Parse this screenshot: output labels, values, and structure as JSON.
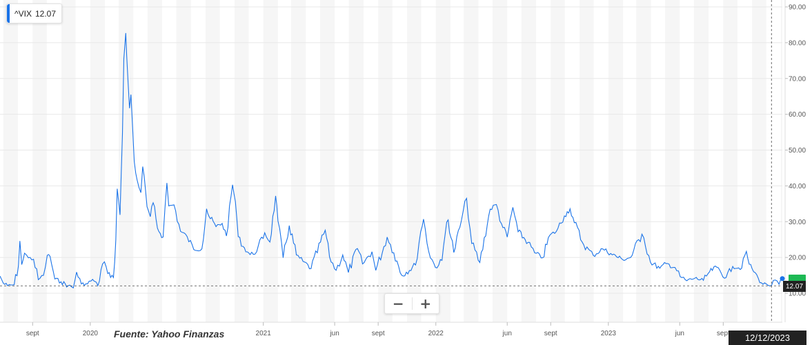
{
  "legend": {
    "symbol": "^VIX",
    "value": "12.07"
  },
  "source": "Fuente: Yahoo Finanzas",
  "zoom": {
    "minus": "−",
    "plus": "+"
  },
  "crosshair": {
    "date": "12/12/2023",
    "price": "12.07"
  },
  "colors": {
    "line": "#1a73e8",
    "band": "#f6f6f6",
    "grid": "#e8e8e8",
    "last_badge": "#1db954"
  },
  "chart_data": {
    "type": "line",
    "title": "",
    "xlabel": "",
    "ylabel": "",
    "ylim": [
      0,
      93
    ],
    "yticks": [
      "10.00",
      "20.00",
      "30.00",
      "40.00",
      "50.00",
      "60.00",
      "70.00",
      "80.00",
      "90.00"
    ],
    "xlim": [
      "2019-06-24",
      "2024-01-04"
    ],
    "xticks": [
      {
        "date": "2019-09-01",
        "label": "sept"
      },
      {
        "date": "2020-01-01",
        "label": "2020"
      },
      {
        "date": "2021-01-01",
        "label": "2021"
      },
      {
        "date": "2021-06-01",
        "label": "jun"
      },
      {
        "date": "2021-09-01",
        "label": "sept"
      },
      {
        "date": "2022-01-01",
        "label": "2022"
      },
      {
        "date": "2022-06-01",
        "label": "jun"
      },
      {
        "date": "2022-09-01",
        "label": "sept"
      },
      {
        "date": "2023-01-01",
        "label": "2023"
      },
      {
        "date": "2023-06-01",
        "label": "jun"
      },
      {
        "date": "2023-09-01",
        "label": "sept"
      }
    ],
    "series": [
      {
        "values": [
          [
            "2019-06-24",
            14.8
          ],
          [
            "2019-07-01",
            12.8
          ],
          [
            "2019-07-10",
            12.1
          ],
          [
            "2019-07-24",
            12.4
          ],
          [
            "2019-08-02",
            17.6
          ],
          [
            "2019-08-05",
            24.6
          ],
          [
            "2019-08-09",
            18.0
          ],
          [
            "2019-08-15",
            21.2
          ],
          [
            "2019-08-23",
            19.9
          ],
          [
            "2019-09-03",
            19.5
          ],
          [
            "2019-09-13",
            13.8
          ],
          [
            "2019-09-24",
            15.0
          ],
          [
            "2019-10-02",
            20.6
          ],
          [
            "2019-10-08",
            20.3
          ],
          [
            "2019-10-18",
            14.0
          ],
          [
            "2019-10-31",
            13.2
          ],
          [
            "2019-11-15",
            12.1
          ],
          [
            "2019-11-26",
            11.5
          ],
          [
            "2019-12-03",
            15.9
          ],
          [
            "2019-12-13",
            12.6
          ],
          [
            "2019-12-26",
            12.6
          ],
          [
            "2020-01-06",
            13.9
          ],
          [
            "2020-01-08",
            13.5
          ],
          [
            "2020-01-17",
            12.1
          ],
          [
            "2020-01-27",
            18.2
          ],
          [
            "2020-01-31",
            18.8
          ],
          [
            "2020-02-07",
            15.5
          ],
          [
            "2020-02-19",
            14.4
          ],
          [
            "2020-02-24",
            25.0
          ],
          [
            "2020-02-27",
            39.2
          ],
          [
            "2020-03-04",
            31.9
          ],
          [
            "2020-03-09",
            54.5
          ],
          [
            "2020-03-12",
            75.5
          ],
          [
            "2020-03-16",
            82.7
          ],
          [
            "2020-03-18",
            76.5
          ],
          [
            "2020-03-24",
            61.7
          ],
          [
            "2020-03-27",
            65.5
          ],
          [
            "2020-04-03",
            46.8
          ],
          [
            "2020-04-09",
            41.7
          ],
          [
            "2020-04-17",
            38.1
          ],
          [
            "2020-04-21",
            45.4
          ],
          [
            "2020-04-30",
            34.2
          ],
          [
            "2020-05-07",
            31.4
          ],
          [
            "2020-05-13",
            35.3
          ],
          [
            "2020-05-22",
            28.2
          ],
          [
            "2020-06-03",
            25.7
          ],
          [
            "2020-06-11",
            40.8
          ],
          [
            "2020-06-15",
            34.4
          ],
          [
            "2020-06-26",
            34.7
          ],
          [
            "2020-07-10",
            27.3
          ],
          [
            "2020-07-24",
            25.8
          ],
          [
            "2020-08-07",
            22.2
          ],
          [
            "2020-08-24",
            22.4
          ],
          [
            "2020-09-03",
            33.6
          ],
          [
            "2020-09-08",
            31.5
          ],
          [
            "2020-09-23",
            28.6
          ],
          [
            "2020-10-06",
            29.5
          ],
          [
            "2020-10-15",
            26.0
          ],
          [
            "2020-10-28",
            40.3
          ],
          [
            "2020-11-03",
            35.6
          ],
          [
            "2020-11-09",
            25.8
          ],
          [
            "2020-11-19",
            23.1
          ],
          [
            "2020-12-04",
            20.8
          ],
          [
            "2020-12-18",
            21.6
          ],
          [
            "2021-01-04",
            26.9
          ],
          [
            "2021-01-15",
            24.3
          ],
          [
            "2021-01-27",
            37.2
          ],
          [
            "2021-02-01",
            30.2
          ],
          [
            "2021-02-12",
            19.9
          ],
          [
            "2021-02-25",
            28.9
          ],
          [
            "2021-03-12",
            20.7
          ],
          [
            "2021-03-26",
            18.9
          ],
          [
            "2021-04-12",
            16.9
          ],
          [
            "2021-05-12",
            27.6
          ],
          [
            "2021-05-21",
            20.2
          ],
          [
            "2021-06-04",
            16.4
          ],
          [
            "2021-06-18",
            20.7
          ],
          [
            "2021-06-30",
            15.8
          ],
          [
            "2021-07-19",
            22.5
          ],
          [
            "2021-07-30",
            18.2
          ],
          [
            "2021-08-19",
            21.6
          ],
          [
            "2021-08-27",
            16.4
          ],
          [
            "2021-09-20",
            25.7
          ],
          [
            "2021-10-04",
            21.3
          ],
          [
            "2021-10-21",
            15.0
          ],
          [
            "2021-11-19",
            17.9
          ],
          [
            "2021-11-30",
            27.2
          ],
          [
            "2021-12-06",
            30.7
          ],
          [
            "2021-12-17",
            21.6
          ],
          [
            "2021-12-31",
            17.2
          ],
          [
            "2022-01-14",
            19.2
          ],
          [
            "2022-01-24",
            29.9
          ],
          [
            "2022-01-27",
            30.5
          ],
          [
            "2022-02-08",
            21.4
          ],
          [
            "2022-02-24",
            30.3
          ],
          [
            "2022-03-07",
            36.5
          ],
          [
            "2022-03-18",
            23.9
          ],
          [
            "2022-04-04",
            18.6
          ],
          [
            "2022-04-26",
            33.5
          ],
          [
            "2022-05-09",
            34.8
          ],
          [
            "2022-05-20",
            29.4
          ],
          [
            "2022-06-01",
            25.7
          ],
          [
            "2022-06-13",
            34.0
          ],
          [
            "2022-06-24",
            27.2
          ],
          [
            "2022-07-15",
            24.2
          ],
          [
            "2022-07-29",
            21.3
          ],
          [
            "2022-08-15",
            19.9
          ],
          [
            "2022-08-30",
            26.2
          ],
          [
            "2022-09-13",
            27.3
          ],
          [
            "2022-09-30",
            31.6
          ],
          [
            "2022-10-12",
            33.6
          ],
          [
            "2022-10-21",
            29.7
          ],
          [
            "2022-11-10",
            23.5
          ],
          [
            "2022-11-30",
            20.6
          ],
          [
            "2022-12-20",
            22.4
          ],
          [
            "2023-01-06",
            21.1
          ],
          [
            "2023-01-31",
            19.4
          ],
          [
            "2023-02-17",
            20.0
          ],
          [
            "2023-03-13",
            26.5
          ],
          [
            "2023-03-17",
            25.5
          ],
          [
            "2023-03-31",
            18.7
          ],
          [
            "2023-04-20",
            17.0
          ],
          [
            "2023-05-03",
            18.3
          ],
          [
            "2023-05-22",
            17.2
          ],
          [
            "2023-06-02",
            14.6
          ],
          [
            "2023-06-16",
            13.5
          ],
          [
            "2023-07-03",
            14.2
          ],
          [
            "2023-07-21",
            13.6
          ],
          [
            "2023-08-03",
            16.0
          ],
          [
            "2023-08-18",
            17.3
          ],
          [
            "2023-09-07",
            14.4
          ],
          [
            "2023-09-21",
            17.5
          ],
          [
            "2023-10-10",
            17.0
          ],
          [
            "2023-10-20",
            21.7
          ],
          [
            "2023-10-26",
            18.1
          ],
          [
            "2023-11-01",
            16.9
          ],
          [
            "2023-11-14",
            14.2
          ],
          [
            "2023-11-24",
            12.5
          ],
          [
            "2023-12-01",
            12.6
          ],
          [
            "2023-12-12",
            12.1
          ],
          [
            "2023-12-20",
            13.7
          ],
          [
            "2023-12-28",
            12.5
          ],
          [
            "2024-01-04",
            14.1
          ]
        ]
      }
    ]
  }
}
